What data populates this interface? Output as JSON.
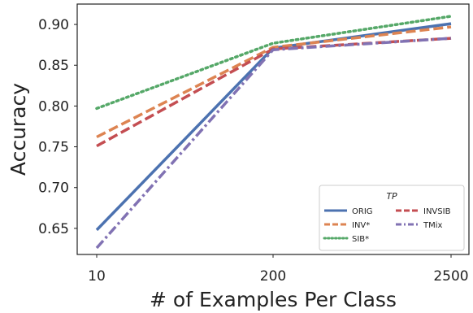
{
  "chart_data": {
    "type": "line",
    "categories": [
      "10",
      "200",
      "2500"
    ],
    "x": [
      10,
      200,
      2500
    ],
    "xlabel": "# of Examples Per Class",
    "ylabel": "Accuracy",
    "ylim": [
      0.618,
      0.925
    ],
    "yticks": [
      "0.65",
      "0.70",
      "0.75",
      "0.80",
      "0.85",
      "0.90"
    ],
    "grid": false,
    "legend": {
      "title": "TP",
      "position": "lower-right",
      "columns": 2
    },
    "series": [
      {
        "name": "ORIG",
        "values": [
          0.648,
          0.871,
          0.901
        ],
        "color": "#4c72b0",
        "dash": "solid"
      },
      {
        "name": "INV*",
        "values": [
          0.762,
          0.872,
          0.897
        ],
        "color": "#dd8452",
        "dash": "dashed"
      },
      {
        "name": "SIB*",
        "values": [
          0.797,
          0.877,
          0.91
        ],
        "color": "#55a868",
        "dash": "dotted"
      },
      {
        "name": "INVSIB",
        "values": [
          0.751,
          0.87,
          0.883
        ],
        "color": "#c44e52",
        "dash": "dashed"
      },
      {
        "name": "TMix",
        "values": [
          0.626,
          0.869,
          0.883
        ],
        "color": "#8172b3",
        "dash": "dashdot"
      }
    ]
  }
}
